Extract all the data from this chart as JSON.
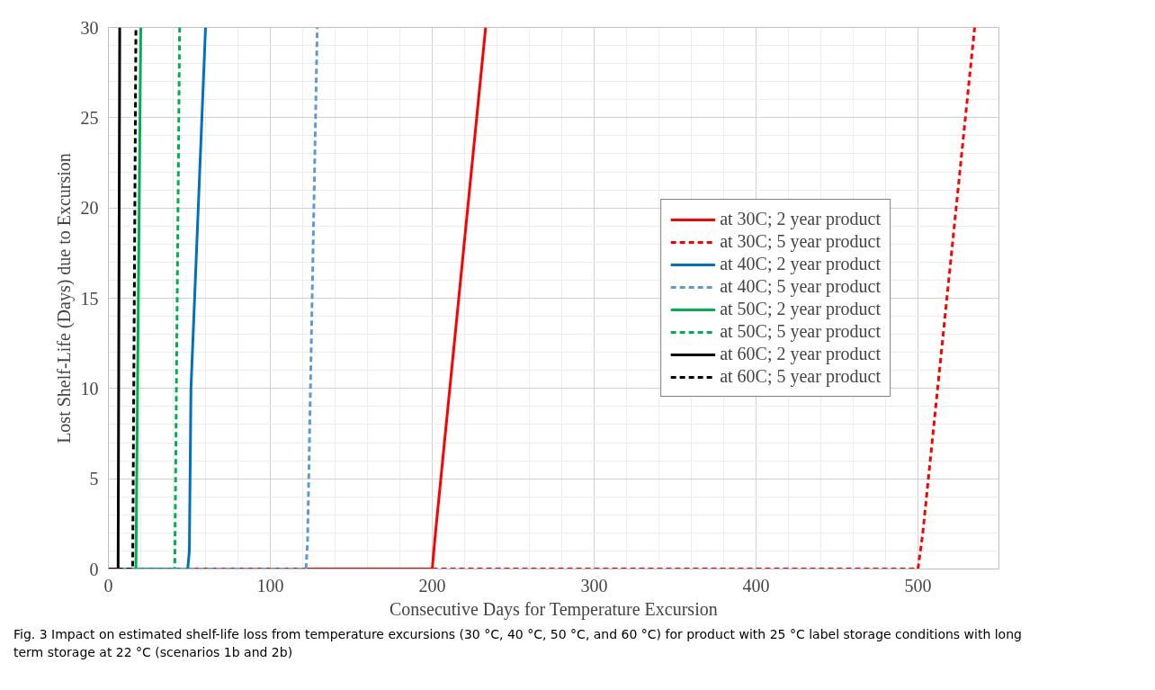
{
  "chart_data": {
    "type": "line",
    "xlabel": "Consecutive Days for Temperature Excursion",
    "ylabel": "Lost Shelf-Life (Days) due to Excursion",
    "xlim": [
      0,
      550
    ],
    "xticks": [
      0,
      100,
      200,
      300,
      400,
      500
    ],
    "ylim": [
      0,
      30
    ],
    "yticks": [
      0,
      5,
      10,
      15,
      20,
      25,
      30
    ],
    "grid": true,
    "legend": "right",
    "marker": "none",
    "annotations": [
      "Fig. 3  Impact on estimated shelf-life loss from temperature excursions (30 °C, 40 °C, 50 °C, and 60 °C) for product with 25 °C label storage conditions with long term storage at 22 °C (scenarios 1b and 2b)"
    ],
    "series": [
      {
        "name": "at 30C; 2 year product",
        "color": "#ff0000",
        "line_style": "solid",
        "x": [
          0,
          200,
          202,
          233
        ],
        "values": [
          0,
          0,
          2,
          30
        ]
      },
      {
        "name": "at 30C; 5 year product",
        "color": "#ff0000",
        "line_style": "dashed",
        "x": [
          0,
          500,
          503,
          535
        ],
        "values": [
          0,
          0,
          2,
          30
        ]
      },
      {
        "name": "at 40C; 2 year product",
        "color": "#0070c0",
        "line_style": "solid",
        "x": [
          0,
          49,
          50,
          51,
          60
        ],
        "values": [
          0,
          0,
          1,
          10,
          30
        ]
      },
      {
        "name": "at 40C; 5 year product",
        "color": "#5b9bd5",
        "line_style": "dashed",
        "x": [
          0,
          122,
          123,
          129
        ],
        "values": [
          0,
          0,
          1.5,
          30
        ]
      },
      {
        "name": "at 50C; 2 year product",
        "color": "#00b050",
        "line_style": "solid",
        "x": [
          0,
          17,
          20
        ],
        "values": [
          0,
          0,
          30
        ]
      },
      {
        "name": "at 50C; 5 year product",
        "color": "#00b050",
        "line_style": "dashed",
        "x": [
          0,
          41,
          44
        ],
        "values": [
          0,
          0,
          30
        ]
      },
      {
        "name": "at 60C; 2 year product",
        "color": "#000000",
        "line_style": "solid",
        "x": [
          0,
          6,
          7
        ],
        "values": [
          0,
          0,
          30
        ]
      },
      {
        "name": "at 60C; 5 year product",
        "color": "#000000",
        "line_style": "dashed",
        "x": [
          0,
          15,
          17
        ],
        "values": [
          0,
          0,
          30
        ]
      }
    ]
  }
}
